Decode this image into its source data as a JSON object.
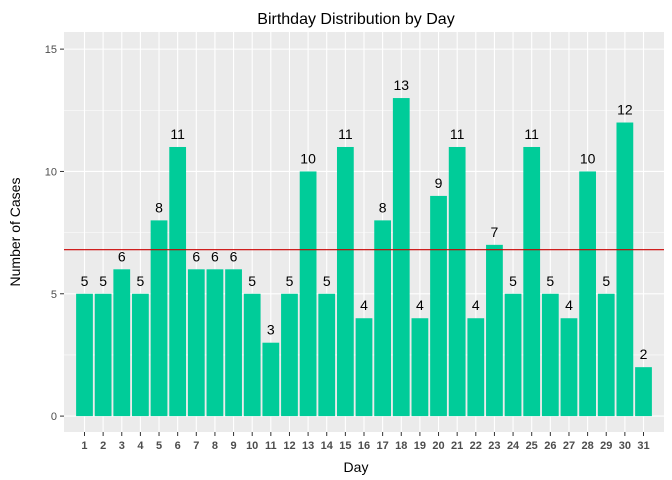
{
  "chart_data": {
    "type": "bar",
    "title": "Birthday Distribution by Day",
    "xlabel": "Day",
    "ylabel": "Number of Cases",
    "categories": [
      "1",
      "2",
      "3",
      "4",
      "5",
      "6",
      "7",
      "8",
      "9",
      "10",
      "11",
      "12",
      "13",
      "14",
      "15",
      "16",
      "17",
      "18",
      "19",
      "20",
      "21",
      "22",
      "23",
      "24",
      "25",
      "26",
      "27",
      "28",
      "29",
      "30",
      "31"
    ],
    "values": [
      5,
      5,
      6,
      5,
      8,
      11,
      6,
      6,
      6,
      5,
      3,
      5,
      10,
      5,
      11,
      4,
      8,
      13,
      4,
      9,
      11,
      4,
      7,
      5,
      11,
      5,
      4,
      10,
      5,
      12,
      2
    ],
    "ylim": [
      -0.65,
      15.7
    ],
    "yticks": [
      0,
      5,
      10,
      15
    ],
    "reference_line": 6.8,
    "grid": true,
    "legend": "none",
    "colors": {
      "bar": "#00CC99",
      "reference_line": "#CC0000",
      "panel_bg": "#EBEBEB",
      "grid": "#FFFFFF",
      "text": "#000000",
      "tick_text": "#4D4D4D"
    }
  }
}
